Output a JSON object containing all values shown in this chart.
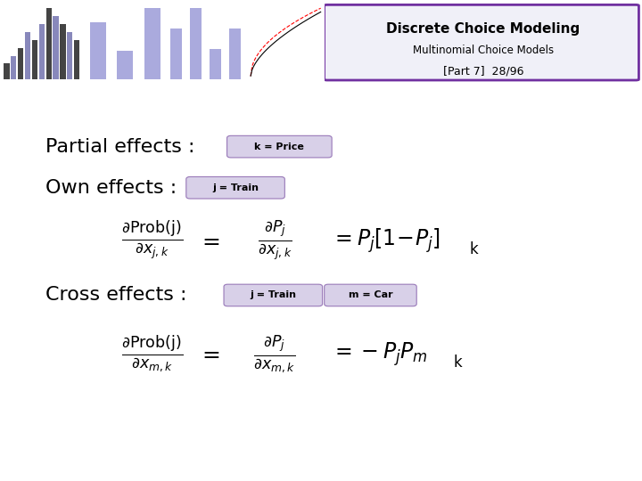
{
  "title_main": "Discrete Choice Modeling",
  "title_sub1": "Multinomial Choice Models",
  "title_sub2": "[Part 7]  28/96",
  "header_bg": "#f0f0f8",
  "header_border": "#7030a0",
  "slide_bg": "#ffffff",
  "left_bar_color": "#7030a0",
  "label_bg": "#d8d0e8",
  "partial_effects_text": "Partial effects :",
  "own_effects_text": "Own effects :",
  "cross_effects_text": "Cross effects :",
  "k_price_label": "k = Price",
  "j_train_label": "j = Train",
  "m_car_label": "m = Car",
  "formula1_k": "k",
  "formula2_k": "k"
}
